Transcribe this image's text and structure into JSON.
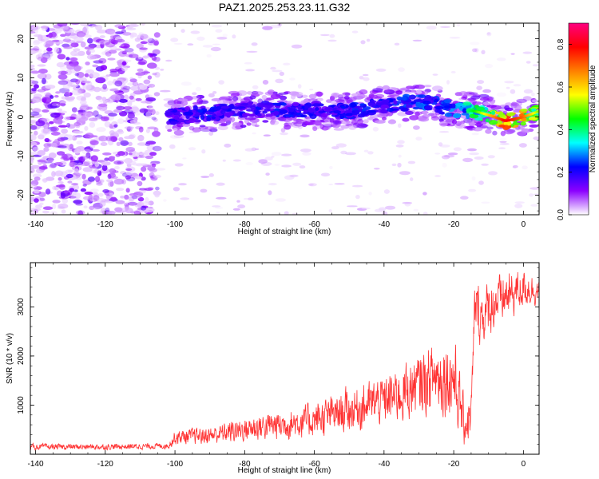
{
  "title": "PAZ1.2025.253.23.11.G32",
  "chart_data": [
    {
      "type": "heatmap",
      "xlabel": "Height of straight line (km)",
      "ylabel": "Frequency (Hz)",
      "xlim": [
        -141.5,
        4.5
      ],
      "ylim": [
        -25,
        24
      ],
      "xticks": [
        -140,
        -120,
        -100,
        -80,
        -60,
        -40,
        -20,
        0
      ],
      "yticks": [
        -20,
        -10,
        0,
        10,
        20
      ],
      "colorbar": {
        "label": "Normalized spectral amplitude",
        "range": [
          0,
          0.9
        ],
        "ticks": [
          0.0,
          0.2,
          0.4,
          0.6,
          0.8
        ],
        "colors": [
          "#ffffff",
          "#8b00ff",
          "#0000ff",
          "#00ffff",
          "#00ff00",
          "#ffff00",
          "#ff8000",
          "#ff0000",
          "#ff0080"
        ]
      },
      "ridge": {
        "x": [
          -102,
          -90,
          -80,
          -70,
          -60,
          -50,
          -40,
          -30,
          -20,
          -14,
          -10,
          -5,
          0,
          4.5
        ],
        "freq": [
          0,
          1,
          2,
          2,
          1.5,
          1.5,
          3,
          4,
          2,
          1.5,
          0.5,
          -1,
          0,
          1.5
        ],
        "peak_amplitude": [
          0.2,
          0.25,
          0.22,
          0.25,
          0.22,
          0.25,
          0.25,
          0.28,
          0.3,
          0.45,
          0.6,
          0.8,
          0.7,
          0.5
        ]
      },
      "noise_region_x": [
        -141.5,
        -105
      ]
    },
    {
      "type": "line",
      "xlabel": "Height of straight line (km)",
      "ylabel": "SNR (10 * v/v)",
      "xlim": [
        -141.5,
        4.5
      ],
      "ylim": [
        0,
        3900
      ],
      "xticks": [
        -140,
        -120,
        -100,
        -80,
        -60,
        -40,
        -20,
        0
      ],
      "yticks": [
        1000,
        2000,
        3000
      ],
      "color": "#ff3333",
      "envelope": {
        "x": [
          -141.5,
          -120,
          -102,
          -100,
          -90,
          -80,
          -70,
          -60,
          -50,
          -40,
          -30,
          -25,
          -20,
          -17,
          -15,
          -14,
          -12,
          -8,
          -5,
          0,
          4.5
        ],
        "mean": [
          150,
          150,
          170,
          350,
          380,
          520,
          600,
          700,
          900,
          1100,
          1400,
          1600,
          1600,
          600,
          800,
          3000,
          2800,
          3100,
          3200,
          3400,
          3300
        ],
        "spread": [
          60,
          60,
          60,
          150,
          180,
          250,
          300,
          350,
          450,
          500,
          650,
          700,
          900,
          450,
          500,
          600,
          600,
          500,
          500,
          400,
          250
        ]
      }
    }
  ]
}
